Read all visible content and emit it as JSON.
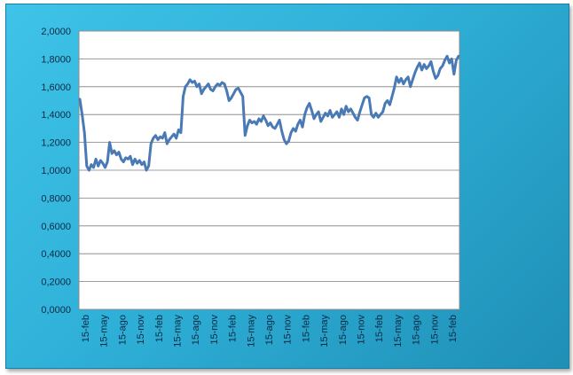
{
  "colors": {
    "panel": "#2fb0d8",
    "plot_area": "#ffffff",
    "series_line": "#4a7ab5",
    "gridline": "#7f7f7f"
  },
  "chart_data": {
    "type": "line",
    "title": "",
    "xlabel": "",
    "ylabel": "",
    "ylim": [
      0,
      2
    ],
    "grid": "horizontal",
    "legend": "none",
    "y_tick_labels": [
      "0,0000",
      "0,2000",
      "0,4000",
      "0,6000",
      "0,8000",
      "1,0000",
      "1,2000",
      "1,4000",
      "1,6000",
      "1,8000",
      "2,0000"
    ],
    "x_tick_labels": [
      "15-feb",
      "15-may",
      "15-ago",
      "15-nov",
      "15-feb",
      "15-may",
      "15-ago",
      "15-nov",
      "15-feb",
      "15-may",
      "15-ago",
      "15-nov",
      "15-feb",
      "15-may",
      "15-ago",
      "15-nov",
      "15-feb",
      "15-may",
      "15-ago",
      "15-nov",
      "15-feb"
    ],
    "series": [
      {
        "values": [
          1.51,
          1.4,
          1.27,
          1.03,
          1.0,
          1.04,
          1.02,
          1.08,
          1.03,
          1.07,
          1.05,
          1.02,
          1.06,
          1.2,
          1.12,
          1.14,
          1.11,
          1.13,
          1.08,
          1.06,
          1.09,
          1.08,
          1.1,
          1.04,
          1.08,
          1.05,
          1.07,
          1.04,
          1.06,
          1.0,
          1.03,
          1.19,
          1.23,
          1.25,
          1.22,
          1.24,
          1.23,
          1.27,
          1.19,
          1.22,
          1.24,
          1.26,
          1.23,
          1.29,
          1.27,
          1.53,
          1.6,
          1.62,
          1.65,
          1.63,
          1.64,
          1.6,
          1.62,
          1.55,
          1.58,
          1.6,
          1.62,
          1.58,
          1.57,
          1.6,
          1.62,
          1.61,
          1.63,
          1.62,
          1.57,
          1.5,
          1.52,
          1.55,
          1.58,
          1.59,
          1.56,
          1.53,
          1.25,
          1.32,
          1.36,
          1.34,
          1.35,
          1.33,
          1.37,
          1.35,
          1.39,
          1.36,
          1.32,
          1.34,
          1.31,
          1.3,
          1.33,
          1.36,
          1.28,
          1.22,
          1.19,
          1.21,
          1.27,
          1.3,
          1.28,
          1.33,
          1.36,
          1.31,
          1.4,
          1.45,
          1.48,
          1.43,
          1.37,
          1.4,
          1.42,
          1.35,
          1.38,
          1.41,
          1.39,
          1.43,
          1.38,
          1.4,
          1.42,
          1.38,
          1.44,
          1.4,
          1.46,
          1.42,
          1.44,
          1.41,
          1.38,
          1.36,
          1.42,
          1.47,
          1.52,
          1.53,
          1.52,
          1.4,
          1.38,
          1.41,
          1.38,
          1.4,
          1.42,
          1.48,
          1.5,
          1.47,
          1.53,
          1.59,
          1.67,
          1.63,
          1.66,
          1.62,
          1.65,
          1.67,
          1.6,
          1.65,
          1.7,
          1.74,
          1.77,
          1.72,
          1.76,
          1.73,
          1.75,
          1.78,
          1.71,
          1.66,
          1.68,
          1.73,
          1.75,
          1.79,
          1.82,
          1.77,
          1.8,
          1.69,
          1.79,
          1.82
        ]
      }
    ]
  }
}
